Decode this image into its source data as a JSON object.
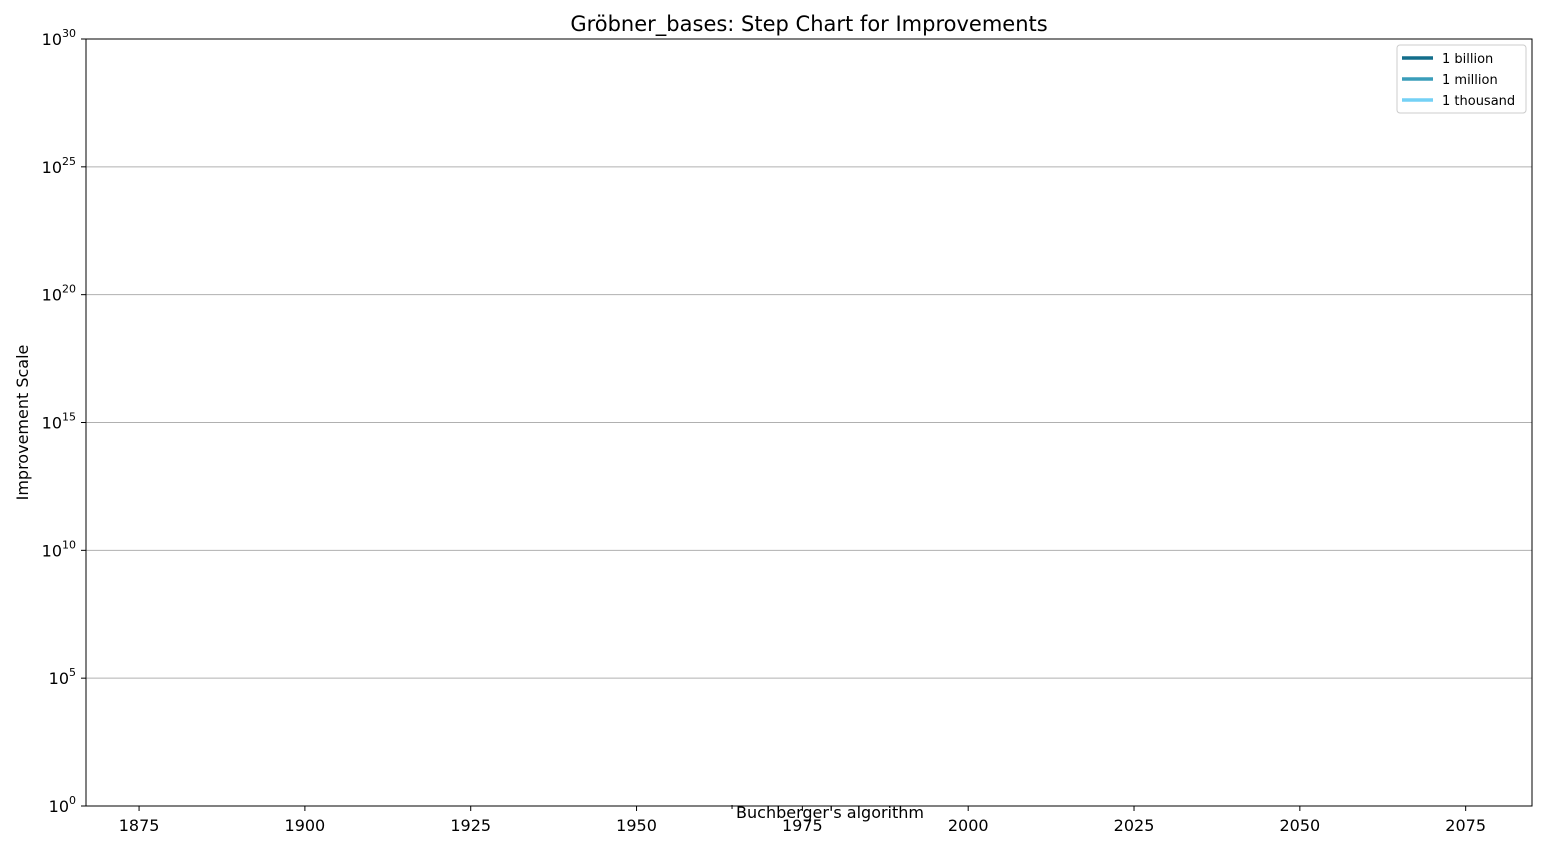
{
  "chart_data": {
    "type": "line",
    "title": "Gröbner_bases: Step Chart for Improvements",
    "xlabel": "",
    "ylabel": "Improvement Scale",
    "yscale": "log",
    "xlim": [
      1867,
      2085
    ],
    "ylim_exponents": [
      0,
      30
    ],
    "x_ticks": [
      "1875",
      "1900",
      "1925",
      "1950",
      "1975",
      "2000",
      "2025",
      "2050",
      "2075"
    ],
    "x_tick_values": [
      1875,
      1900,
      1925,
      1950,
      1975,
      2000,
      2025,
      2050,
      2075
    ],
    "y_ticks": [
      {
        "base": "10",
        "exp": "0",
        "value_exp": 0
      },
      {
        "base": "10",
        "exp": "5",
        "value_exp": 5
      },
      {
        "base": "10",
        "exp": "10",
        "value_exp": 10
      },
      {
        "base": "10",
        "exp": "15",
        "value_exp": 15
      },
      {
        "base": "10",
        "exp": "20",
        "value_exp": 20
      },
      {
        "base": "10",
        "exp": "25",
        "value_exp": 25
      },
      {
        "base": "10",
        "exp": "30",
        "value_exp": 30
      }
    ],
    "grid": "horizontal",
    "reference_lines": [
      {
        "name": "1 billion",
        "value": 1000000000,
        "color": "#136e8b"
      },
      {
        "name": "1 million",
        "value": 1000000,
        "color": "#3a9dba"
      },
      {
        "name": "1 thousand",
        "value": 1000,
        "color": "#74d1f5"
      }
    ],
    "legend_position": "top-right",
    "series": [],
    "annotations": [
      {
        "text": "Buchberger's algorithm",
        "x": 1965,
        "y_exp": 0
      }
    ]
  }
}
